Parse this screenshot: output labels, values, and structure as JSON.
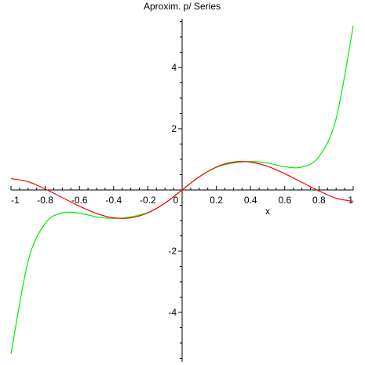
{
  "chart_data": {
    "type": "line",
    "title": "Aproxim. p/ Series",
    "xlabel": "x",
    "ylabel": "",
    "xlim": [
      -1,
      1
    ],
    "ylim": [
      -5.5,
      5.5
    ],
    "grid": false,
    "legend": "none",
    "x_ticks": [
      {
        "value": -1,
        "label": "-1"
      },
      {
        "value": -0.8,
        "label": "-0.8"
      },
      {
        "value": -0.6,
        "label": "-0.6"
      },
      {
        "value": -0.4,
        "label": "-0.4"
      },
      {
        "value": -0.2,
        "label": "-0.2"
      },
      {
        "value": 0,
        "label": "0"
      },
      {
        "value": 0.2,
        "label": "0.2"
      },
      {
        "value": 0.4,
        "label": "0.4"
      },
      {
        "value": 0.6,
        "label": "0.6"
      },
      {
        "value": 0.8,
        "label": "0.8"
      },
      {
        "value": 1,
        "label": "1"
      }
    ],
    "y_ticks": [
      {
        "value": -4,
        "label": "-4"
      },
      {
        "value": -2,
        "label": "-2"
      },
      {
        "value": 2,
        "label": "2"
      },
      {
        "value": 4,
        "label": "4"
      }
    ],
    "series": [
      {
        "color": "#ff0000",
        "x": [
          -1,
          -0.9,
          -0.8,
          -0.7,
          -0.6,
          -0.5,
          -0.4,
          -0.3,
          -0.2,
          -0.1,
          0,
          0.1,
          0.2,
          0.3,
          0.4,
          0.5,
          0.6,
          0.7,
          0.8,
          0.9,
          1
        ],
        "y": [
          0.37,
          0.27,
          0.03,
          -0.25,
          -0.53,
          -0.77,
          -0.91,
          -0.91,
          -0.75,
          -0.43,
          0,
          0.43,
          0.75,
          0.91,
          0.91,
          0.77,
          0.53,
          0.25,
          -0.03,
          -0.27,
          -0.37
        ]
      },
      {
        "color": "#00ee00",
        "x": [
          -1,
          -0.9,
          -0.8,
          -0.7,
          -0.6,
          -0.5,
          -0.4,
          -0.3,
          -0.2,
          -0.1,
          0,
          0.1,
          0.2,
          0.3,
          0.4,
          0.5,
          0.6,
          0.7,
          0.8,
          0.9,
          1
        ],
        "y": [
          -5.36,
          -2.33,
          -1.09,
          -0.75,
          -0.76,
          -0.88,
          -0.93,
          -0.88,
          -0.74,
          -0.43,
          0,
          0.43,
          0.74,
          0.88,
          0.93,
          0.88,
          0.76,
          0.75,
          1.09,
          2.33,
          5.36
        ]
      }
    ]
  }
}
